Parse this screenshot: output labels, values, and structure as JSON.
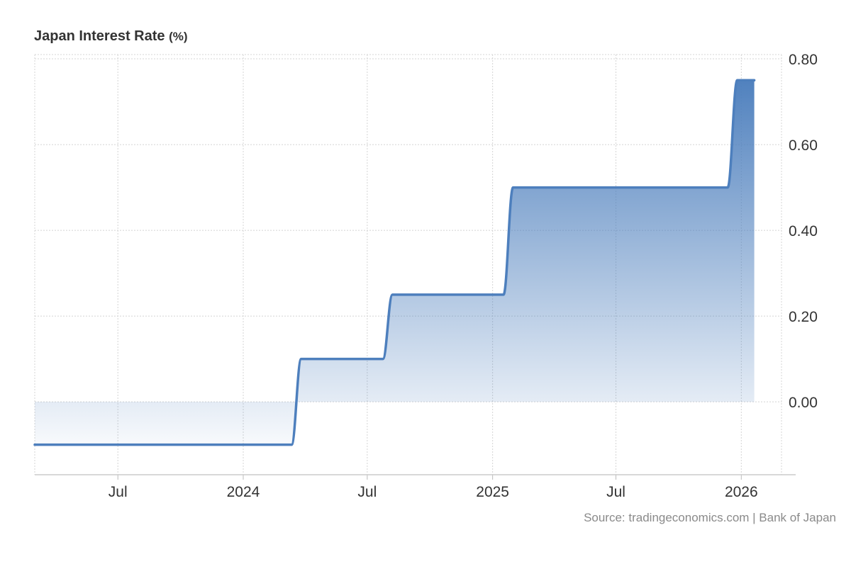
{
  "header": {
    "title": "Japan Interest Rate",
    "unit": "(%)"
  },
  "footer": {
    "source": "Source: tradingeconomics.com | Bank of Japan"
  },
  "colors": {
    "line": "#4d7fbd",
    "fill_top": "#4d7fbd",
    "grid": "#d4d4d4",
    "axis": "#cccccc"
  },
  "chart_data": {
    "type": "area",
    "title": "Japan Interest Rate",
    "xlabel": "",
    "ylabel": "",
    "x_ticks": [
      {
        "date": "2023-07-01",
        "label": "Jul"
      },
      {
        "date": "2024-01-01",
        "label": "2024"
      },
      {
        "date": "2024-07-01",
        "label": "Jul"
      },
      {
        "date": "2025-01-01",
        "label": "2025"
      },
      {
        "date": "2025-07-01",
        "label": "Jul"
      },
      {
        "date": "2026-01-01",
        "label": "2026"
      }
    ],
    "y_ticks": [
      "0.80",
      "0.60",
      "0.40",
      "0.20",
      "0.00"
    ],
    "ylim": [
      -0.17,
      0.81
    ],
    "xlim": [
      "2023-03-01",
      "2026-03-01"
    ],
    "grid": true,
    "y_axis_side": "right",
    "series": [
      {
        "x": [
          "2023-03-01",
          "2024-03-19",
          "2024-07-31",
          "2025-01-24",
          "2025-12-19",
          "2026-01-20"
        ],
        "y": [
          -0.1,
          0.1,
          0.25,
          0.5,
          0.75,
          0.75
        ]
      }
    ]
  }
}
